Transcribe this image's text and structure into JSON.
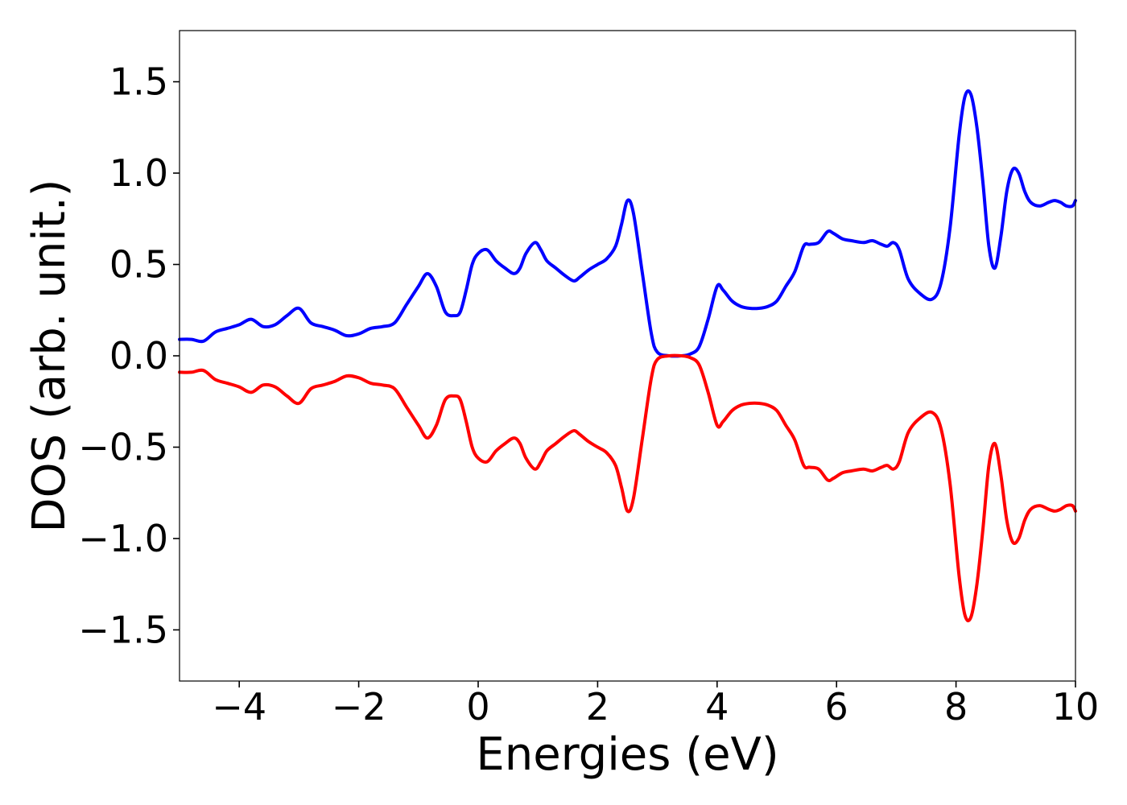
{
  "chart_data": {
    "type": "line",
    "title": "",
    "xlabel": "Energies (eV)",
    "ylabel": "DOS (arb. unit.)",
    "xlim": [
      -5,
      10
    ],
    "ylim": [
      -1.78,
      1.78
    ],
    "xticks": [
      -4,
      -2,
      0,
      2,
      4,
      6,
      8,
      10
    ],
    "xtick_labels": [
      "−4",
      "−2",
      "0",
      "2",
      "4",
      "6",
      "8",
      "10"
    ],
    "yticks": [
      1.5,
      1.0,
      0.5,
      0.0,
      -0.5,
      -1.0,
      -1.5
    ],
    "ytick_labels": [
      "1.5",
      "1.0",
      "0.5",
      "0.0",
      "−0.5",
      "−1.0",
      "−1.5"
    ],
    "grid": false,
    "legend": "none",
    "series": [
      {
        "color": "#0000ff",
        "x": [
          -5.0,
          -4.8,
          -4.6,
          -4.4,
          -4.2,
          -4.0,
          -3.8,
          -3.6,
          -3.4,
          -3.2,
          -3.0,
          -2.8,
          -2.6,
          -2.4,
          -2.2,
          -2.0,
          -1.8,
          -1.6,
          -1.4,
          -1.2,
          -1.0,
          -0.85,
          -0.7,
          -0.55,
          -0.4,
          -0.3,
          -0.2,
          -0.1,
          0.0,
          0.15,
          0.3,
          0.45,
          0.6,
          0.7,
          0.8,
          0.95,
          1.05,
          1.15,
          1.3,
          1.45,
          1.6,
          1.7,
          1.85,
          2.0,
          2.15,
          2.3,
          2.4,
          2.5,
          2.6,
          2.75,
          2.9,
          3.0,
          3.2,
          3.4,
          3.55,
          3.7,
          3.85,
          4.0,
          4.1,
          4.25,
          4.4,
          4.55,
          4.7,
          4.85,
          5.0,
          5.15,
          5.3,
          5.45,
          5.55,
          5.7,
          5.85,
          5.95,
          6.1,
          6.25,
          6.45,
          6.6,
          6.75,
          6.85,
          6.95,
          7.05,
          7.2,
          7.4,
          7.6,
          7.75,
          7.9,
          8.05,
          8.15,
          8.25,
          8.35,
          8.45,
          8.55,
          8.65,
          8.75,
          8.85,
          8.95,
          9.05,
          9.15,
          9.25,
          9.4,
          9.55,
          9.65,
          9.75,
          9.85,
          9.95,
          10.0
        ],
        "y": [
          0.09,
          0.09,
          0.08,
          0.13,
          0.15,
          0.17,
          0.2,
          0.16,
          0.17,
          0.22,
          0.26,
          0.18,
          0.16,
          0.14,
          0.11,
          0.12,
          0.15,
          0.16,
          0.18,
          0.28,
          0.38,
          0.45,
          0.38,
          0.24,
          0.22,
          0.24,
          0.36,
          0.5,
          0.56,
          0.58,
          0.52,
          0.48,
          0.45,
          0.48,
          0.56,
          0.62,
          0.58,
          0.52,
          0.48,
          0.44,
          0.41,
          0.43,
          0.47,
          0.5,
          0.53,
          0.6,
          0.72,
          0.85,
          0.78,
          0.45,
          0.12,
          0.02,
          0.0,
          0.0,
          0.01,
          0.05,
          0.2,
          0.38,
          0.36,
          0.3,
          0.27,
          0.26,
          0.26,
          0.27,
          0.3,
          0.38,
          0.46,
          0.6,
          0.61,
          0.62,
          0.68,
          0.67,
          0.64,
          0.63,
          0.62,
          0.63,
          0.61,
          0.6,
          0.62,
          0.58,
          0.42,
          0.34,
          0.31,
          0.4,
          0.7,
          1.2,
          1.42,
          1.43,
          1.25,
          0.95,
          0.6,
          0.48,
          0.65,
          0.9,
          1.02,
          1.0,
          0.9,
          0.84,
          0.82,
          0.84,
          0.85,
          0.84,
          0.82,
          0.82,
          0.85
        ]
      },
      {
        "color": "#ff0000",
        "x": [
          -5.0,
          -4.8,
          -4.6,
          -4.4,
          -4.2,
          -4.0,
          -3.8,
          -3.6,
          -3.4,
          -3.2,
          -3.0,
          -2.8,
          -2.6,
          -2.4,
          -2.2,
          -2.0,
          -1.8,
          -1.6,
          -1.4,
          -1.2,
          -1.0,
          -0.85,
          -0.7,
          -0.55,
          -0.4,
          -0.3,
          -0.2,
          -0.1,
          0.0,
          0.15,
          0.3,
          0.45,
          0.6,
          0.7,
          0.8,
          0.95,
          1.05,
          1.15,
          1.3,
          1.45,
          1.6,
          1.7,
          1.85,
          2.0,
          2.15,
          2.3,
          2.4,
          2.5,
          2.6,
          2.75,
          2.9,
          3.0,
          3.2,
          3.4,
          3.55,
          3.7,
          3.85,
          4.0,
          4.1,
          4.25,
          4.4,
          4.55,
          4.7,
          4.85,
          5.0,
          5.15,
          5.3,
          5.45,
          5.55,
          5.7,
          5.85,
          5.95,
          6.1,
          6.25,
          6.45,
          6.6,
          6.75,
          6.85,
          6.95,
          7.05,
          7.2,
          7.4,
          7.6,
          7.75,
          7.9,
          8.05,
          8.15,
          8.25,
          8.35,
          8.45,
          8.55,
          8.65,
          8.75,
          8.85,
          8.95,
          9.05,
          9.15,
          9.25,
          9.4,
          9.55,
          9.65,
          9.75,
          9.85,
          9.95,
          10.0
        ],
        "y": [
          -0.09,
          -0.09,
          -0.08,
          -0.13,
          -0.15,
          -0.17,
          -0.2,
          -0.16,
          -0.17,
          -0.22,
          -0.26,
          -0.18,
          -0.16,
          -0.14,
          -0.11,
          -0.12,
          -0.15,
          -0.16,
          -0.18,
          -0.28,
          -0.38,
          -0.45,
          -0.38,
          -0.24,
          -0.22,
          -0.24,
          -0.36,
          -0.5,
          -0.56,
          -0.58,
          -0.52,
          -0.48,
          -0.45,
          -0.48,
          -0.56,
          -0.62,
          -0.58,
          -0.52,
          -0.48,
          -0.44,
          -0.41,
          -0.43,
          -0.47,
          -0.5,
          -0.53,
          -0.6,
          -0.72,
          -0.85,
          -0.78,
          -0.45,
          -0.12,
          -0.02,
          0.0,
          0.0,
          -0.01,
          -0.05,
          -0.2,
          -0.38,
          -0.36,
          -0.3,
          -0.27,
          -0.26,
          -0.26,
          -0.27,
          -0.3,
          -0.38,
          -0.46,
          -0.6,
          -0.61,
          -0.62,
          -0.68,
          -0.67,
          -0.64,
          -0.63,
          -0.62,
          -0.63,
          -0.61,
          -0.6,
          -0.62,
          -0.58,
          -0.42,
          -0.34,
          -0.31,
          -0.4,
          -0.7,
          -1.2,
          -1.42,
          -1.43,
          -1.25,
          -0.95,
          -0.6,
          -0.48,
          -0.65,
          -0.9,
          -1.02,
          -1.0,
          -0.9,
          -0.84,
          -0.82,
          -0.84,
          -0.85,
          -0.84,
          -0.82,
          -0.82,
          -0.85
        ]
      }
    ]
  }
}
